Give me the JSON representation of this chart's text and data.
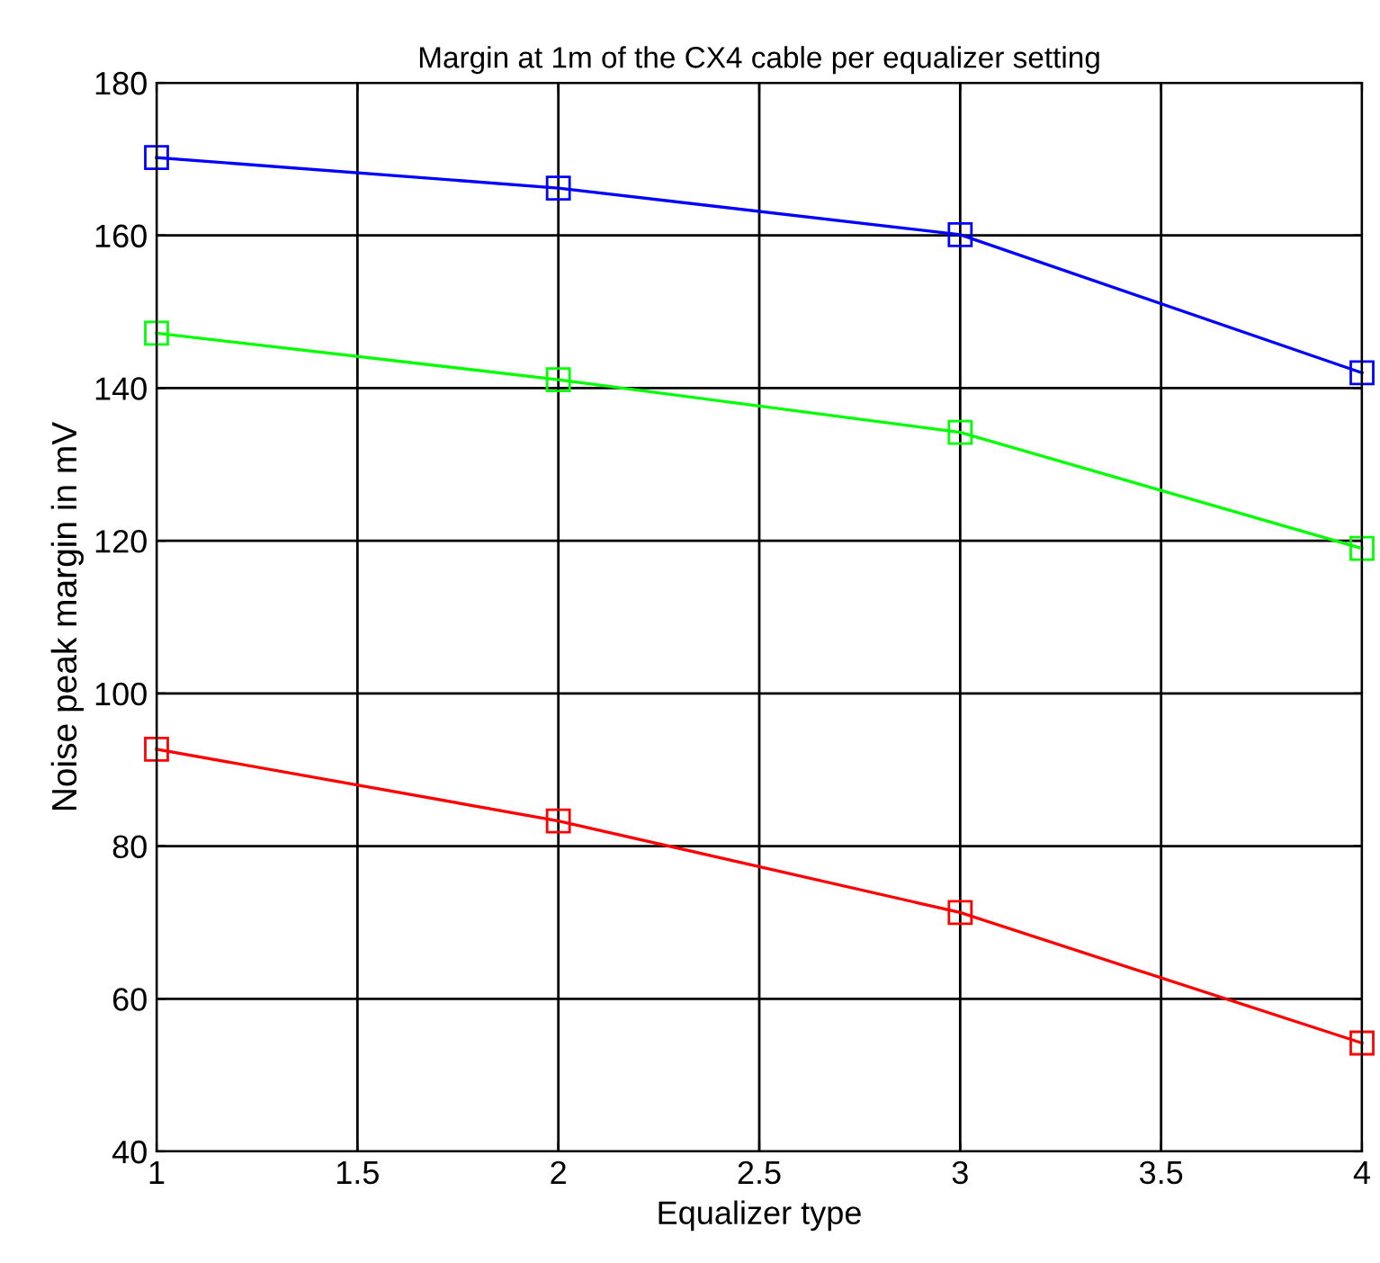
{
  "chart_data": {
    "type": "line",
    "title": "Margin at 1m of the CX4 cable per equalizer setting",
    "xlabel": "Equalizer type",
    "ylabel": "Noise peak margin in mV",
    "x": [
      1,
      2,
      3,
      4
    ],
    "series": [
      {
        "color": "#0000ff",
        "values": [
          170.2,
          166.2,
          160.1,
          142
        ]
      },
      {
        "color": "#00ff00",
        "values": [
          147.2,
          141.1,
          134.2,
          119
        ]
      },
      {
        "color": "#ff0000",
        "values": [
          92.7,
          83.3,
          71.3,
          54.2
        ]
      }
    ],
    "xlim": [
      1,
      4
    ],
    "xticks": [
      1,
      1.5,
      2,
      2.5,
      3,
      3.5,
      4
    ],
    "ylim": [
      40,
      180
    ],
    "yticks": [
      40,
      60,
      80,
      100,
      120,
      140,
      160,
      180
    ],
    "grid": true,
    "marker": "square",
    "line_style": "solid",
    "legend": false
  }
}
